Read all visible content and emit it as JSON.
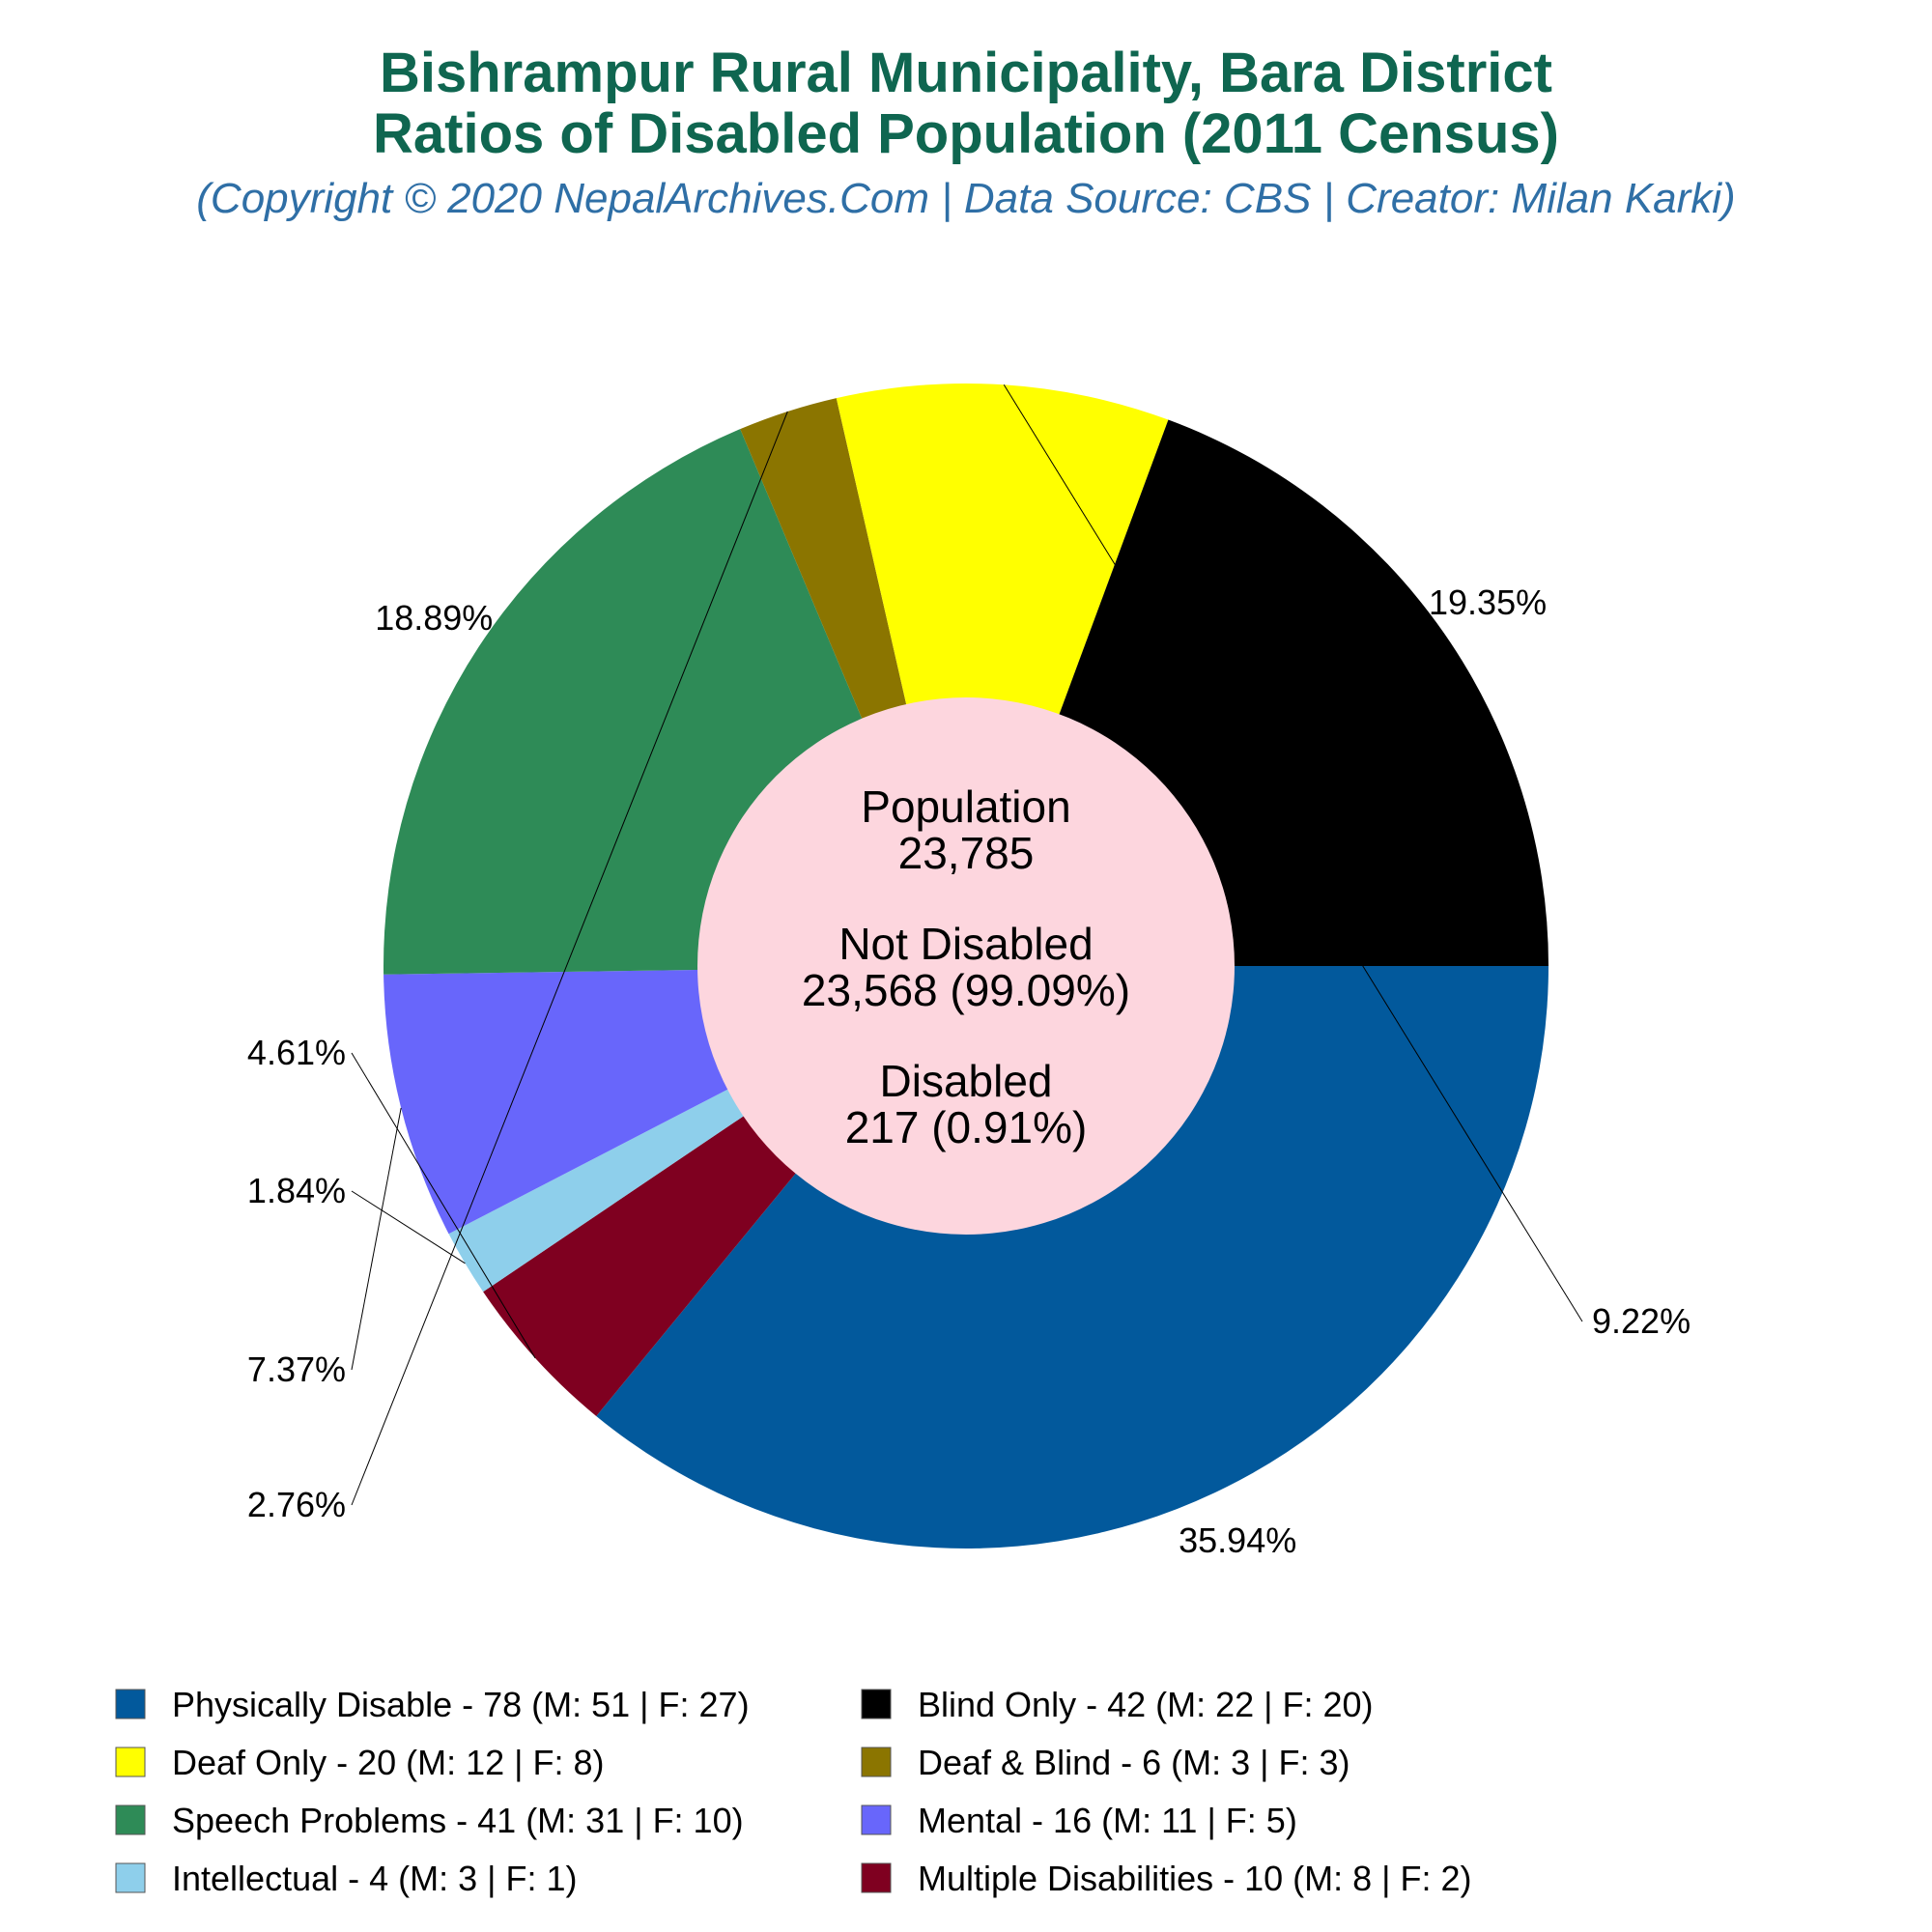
{
  "title_line1": "Bishrampur Rural Municipality, Bara District",
  "title_line2": "Ratios of Disabled Population (2011 Census)",
  "subtitle": "(Copyright © 2020 NepalArchives.Com | Data Source: CBS | Creator: Milan Karki)",
  "colors": {
    "title": "#0f6650",
    "subtitle": "#2f6fa6",
    "center_fill": "#fdd6de"
  },
  "center": {
    "population_label": "Population",
    "population_value": "23,785",
    "not_disabled_label": "Not Disabled",
    "not_disabled_value": "23,568 (99.09%)",
    "disabled_label": "Disabled",
    "disabled_value": "217 (0.91%)"
  },
  "chart_data": {
    "type": "pie",
    "series": [
      {
        "name": "Physically Disable",
        "value": 78,
        "male": 51,
        "female": 27,
        "percent_label": "35.94%",
        "color": "#02599c",
        "legend": "Physically Disable - 78 (M: 51 | F: 27)"
      },
      {
        "name": "Multiple Disabilities",
        "value": 10,
        "male": 8,
        "female": 2,
        "percent_label": "4.61%",
        "color": "#7f0020",
        "legend": "Multiple Disabilities - 10 (M: 8 | F: 2)"
      },
      {
        "name": "Intellectual",
        "value": 4,
        "male": 3,
        "female": 1,
        "percent_label": "1.84%",
        "color": "#8ecfeb",
        "legend": "Intellectual - 4 (M: 3 | F: 1)"
      },
      {
        "name": "Mental",
        "value": 16,
        "male": 11,
        "female": 5,
        "percent_label": "7.37%",
        "color": "#6866fb",
        "legend": "Mental - 16 (M: 11 | F: 5)"
      },
      {
        "name": "Speech Problems",
        "value": 41,
        "male": 31,
        "female": 10,
        "percent_label": "18.89%",
        "color": "#2e8b57",
        "legend": "Speech Problems - 41 (M: 31 | F: 10)"
      },
      {
        "name": "Deaf & Blind",
        "value": 6,
        "male": 3,
        "female": 3,
        "percent_label": "2.76%",
        "color": "#8b7500",
        "legend": "Deaf & Blind - 6 (M: 3 | F: 3)"
      },
      {
        "name": "Deaf Only",
        "value": 20,
        "male": 12,
        "female": 8,
        "percent_label": "9.22%",
        "color": "#ffff00",
        "legend": "Deaf Only - 20 (M: 12 | F: 8)"
      },
      {
        "name": "Blind Only",
        "value": 42,
        "male": 22,
        "female": 20,
        "percent_label": "19.35%",
        "color": "#000000",
        "legend": "Blind Only - 42 (M: 22 | F: 20)"
      }
    ],
    "legend_order": [
      "Physically Disable",
      "Blind Only",
      "Deaf Only",
      "Deaf & Blind",
      "Speech Problems",
      "Mental",
      "Intellectual",
      "Multiple Disabilities"
    ],
    "legend_placement": "bottom",
    "direction": "clockwise from 3 o'clock"
  }
}
